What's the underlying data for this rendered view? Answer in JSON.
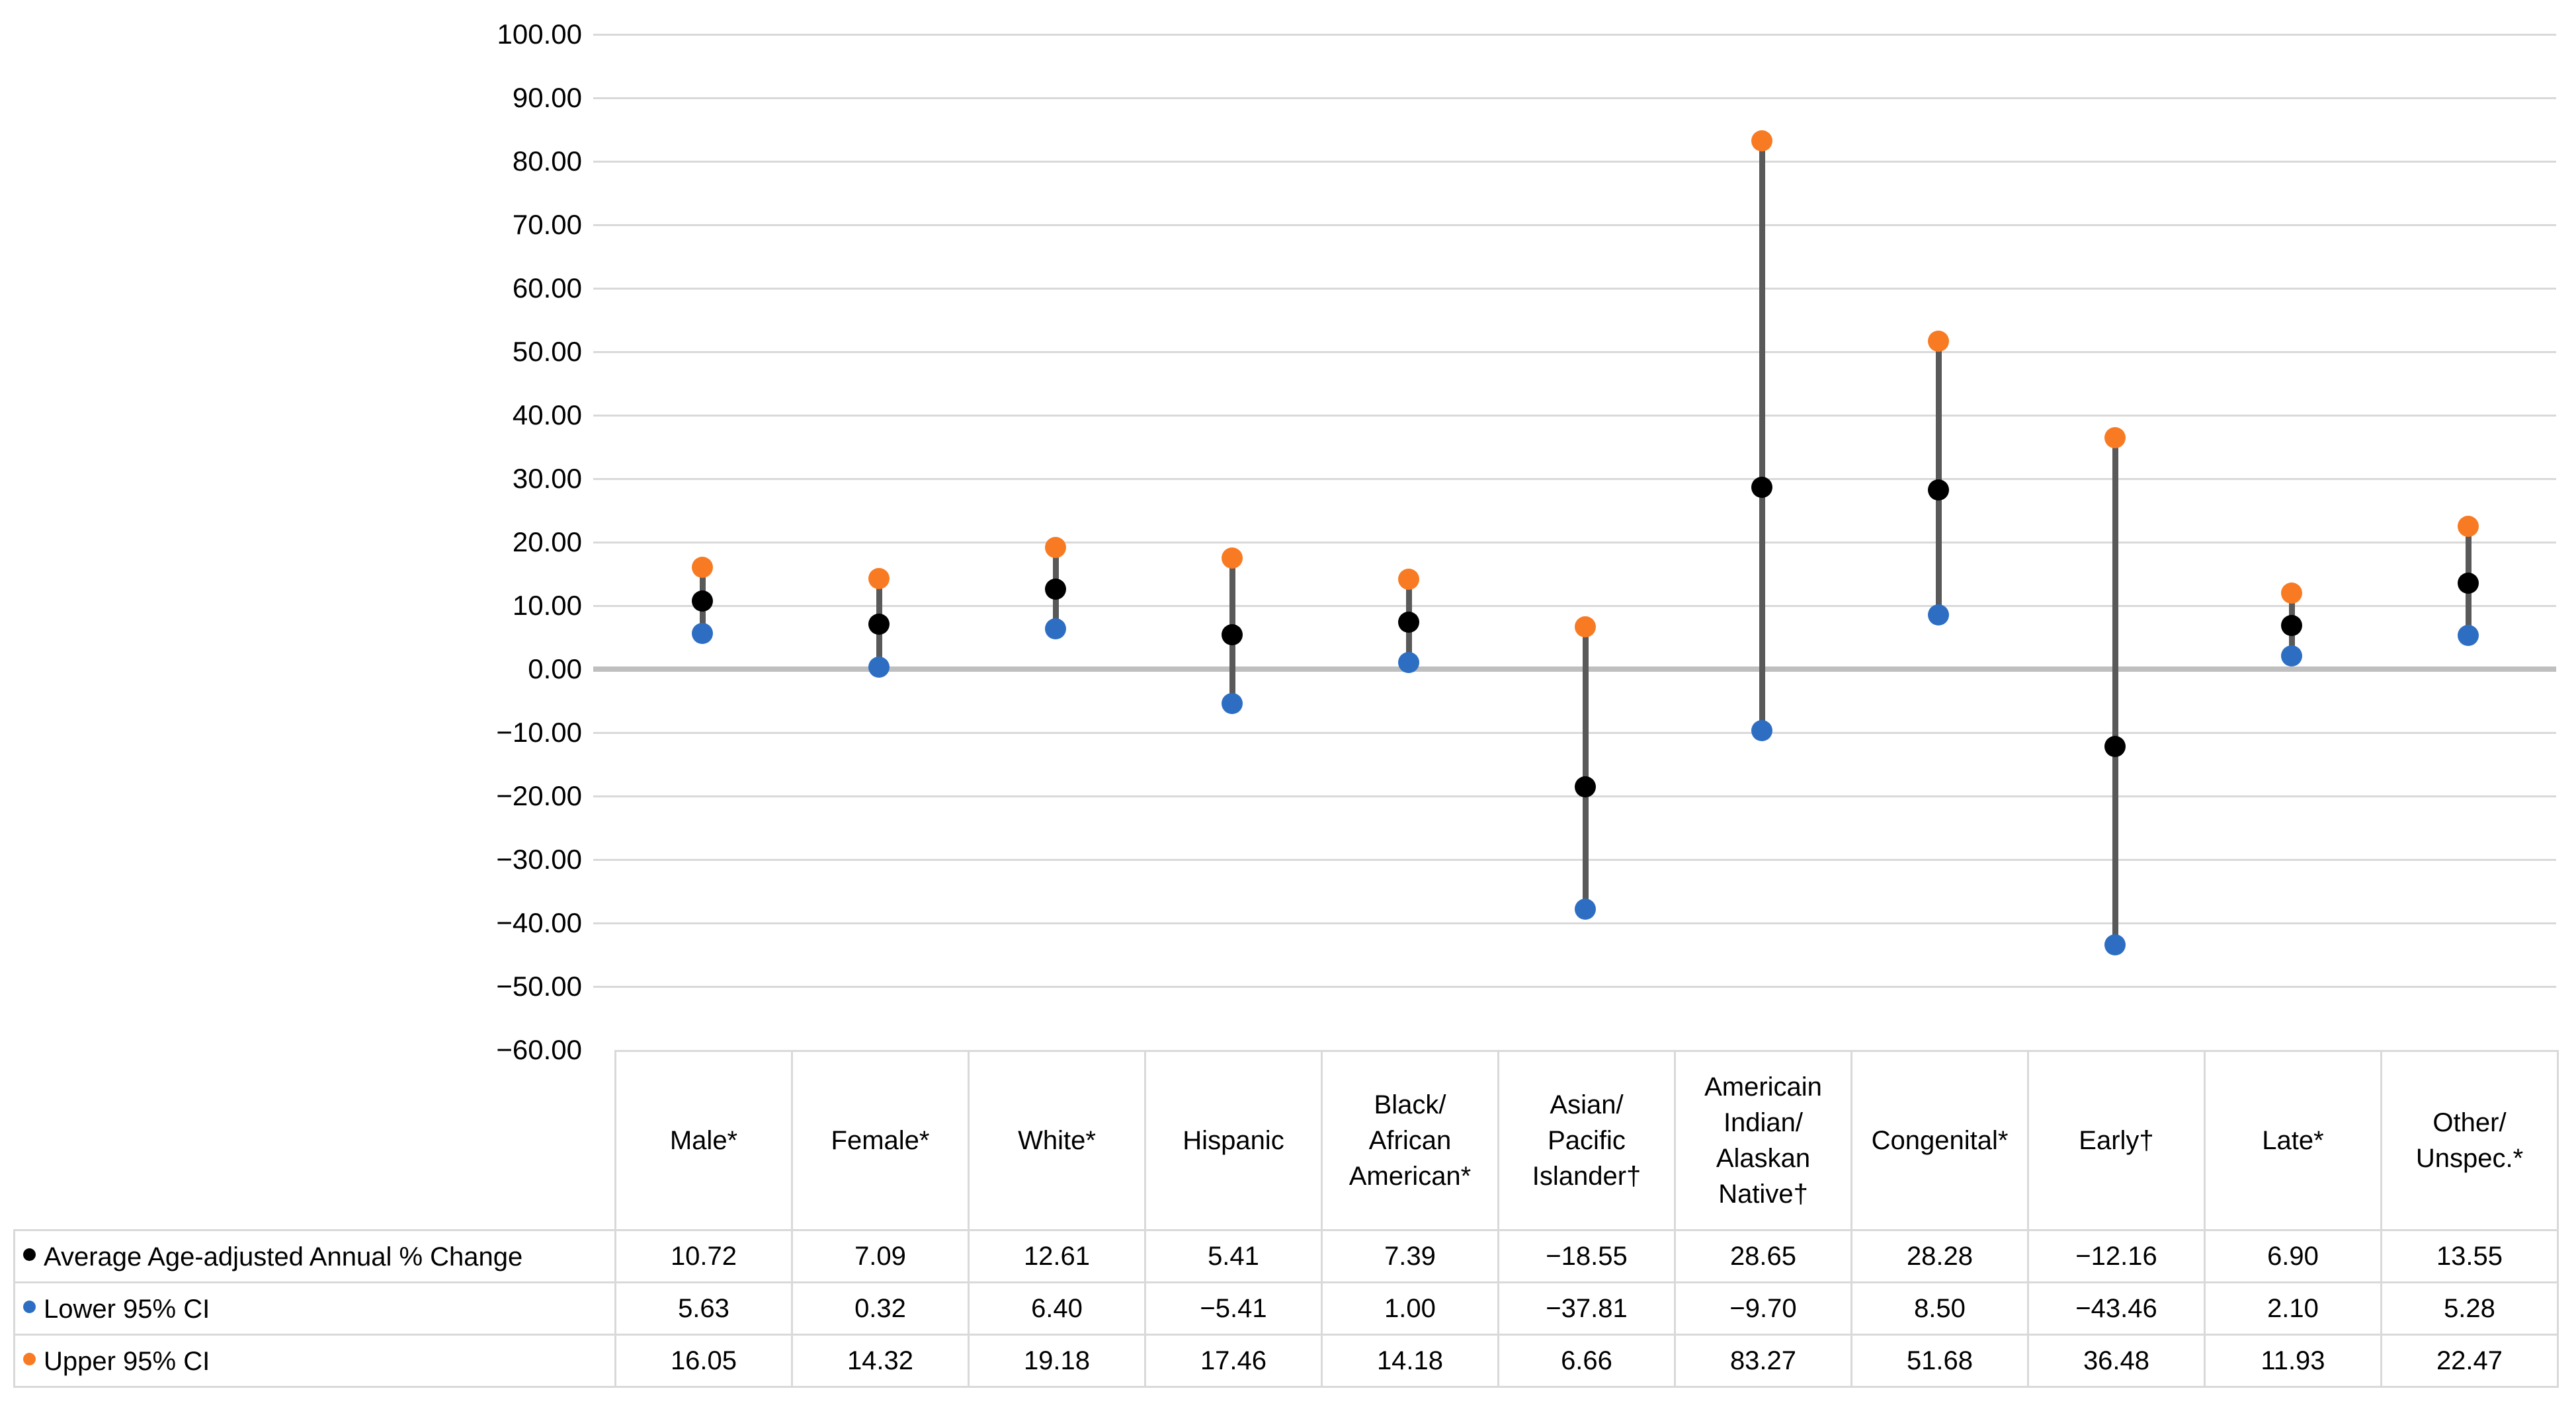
{
  "chart_data": {
    "type": "scatter",
    "subtype": "dot-range-with-95ci",
    "categories": [
      "Male*",
      "Female*",
      "White*",
      "Hispanic",
      "Black/\nAfrican\nAmerican*",
      "Asian/\nPacific\nIslander†",
      "Americain\nIndian/\nAlaskan\nNative†",
      "Congenital*",
      "Early†",
      "Late*",
      "Other/\nUnspec.*"
    ],
    "series": [
      {
        "name": "Average Age-adjusted Annual % Change",
        "marker_color": "#000000",
        "values": [
          10.72,
          7.09,
          12.61,
          5.41,
          7.39,
          -18.55,
          28.65,
          28.28,
          -12.16,
          6.9,
          13.55
        ]
      },
      {
        "name": "Lower 95% CI",
        "marker_color": "#2D6EC3",
        "values": [
          5.63,
          0.32,
          6.4,
          -5.41,
          1.0,
          -37.81,
          -9.7,
          8.5,
          -43.46,
          2.1,
          5.28
        ]
      },
      {
        "name": "Upper 95% CI",
        "marker_color": "#F87B23",
        "values": [
          16.05,
          14.32,
          19.18,
          17.46,
          14.18,
          6.66,
          83.27,
          51.68,
          36.48,
          11.93,
          22.47
        ]
      }
    ],
    "ylim": [
      -60,
      100
    ],
    "ytick_step": 10,
    "y_tick_labels": [
      "100.00",
      "90.00",
      "80.00",
      "70.00",
      "60.00",
      "50.00",
      "40.00",
      "30.00",
      "20.00",
      "10.00",
      "0.00",
      "−10.00",
      "−20.00",
      "−30.00",
      "−40.00",
      "−50.00",
      "−60.00"
    ],
    "grid": "horizontal",
    "legend_position": "data-table-left",
    "connector_color": "#595959",
    "gridline_color": "#D9D9D9",
    "zero_line_color": "#BFBFBF"
  },
  "table": {
    "rows": [
      {
        "label": "Average Age-adjusted Annual % Change",
        "marker_color": "#000000",
        "values": [
          "10.72",
          "7.09",
          "12.61",
          "5.41",
          "7.39",
          "−18.55",
          "28.65",
          "28.28",
          "−12.16",
          "6.90",
          "13.55"
        ]
      },
      {
        "label": "Lower 95% CI",
        "marker_color": "#2D6EC3",
        "values": [
          "5.63",
          "0.32",
          "6.40",
          "−5.41",
          "1.00",
          "−37.81",
          "−9.70",
          "8.50",
          "−43.46",
          "2.10",
          "5.28"
        ]
      },
      {
        "label": "Upper 95% CI",
        "marker_color": "#F87B23",
        "values": [
          "16.05",
          "14.32",
          "19.18",
          "17.46",
          "14.18",
          "6.66",
          "83.27",
          "51.68",
          "36.48",
          "11.93",
          "22.47"
        ]
      }
    ],
    "border_color": "#D9D9D9"
  }
}
